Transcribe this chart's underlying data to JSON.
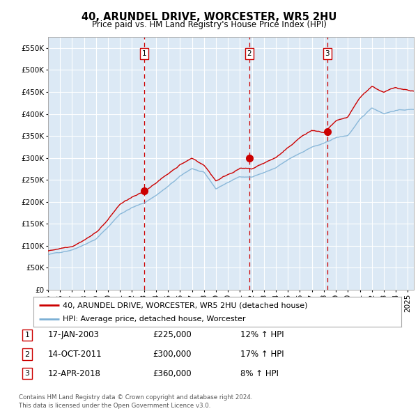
{
  "title": "40, ARUNDEL DRIVE, WORCESTER, WR5 2HU",
  "subtitle": "Price paid vs. HM Land Registry's House Price Index (HPI)",
  "plot_bg_color": "#dce9f5",
  "fig_bg_color": "#ffffff",
  "red_line_color": "#cc0000",
  "blue_line_color": "#7bafd4",
  "grid_color": "#ffffff",
  "dashed_line_color": "#cc0000",
  "ylim": [
    0,
    575000
  ],
  "yticks": [
    0,
    50000,
    100000,
    150000,
    200000,
    250000,
    300000,
    350000,
    400000,
    450000,
    500000,
    550000
  ],
  "sale_dates_num": [
    2003.04,
    2011.79,
    2018.28
  ],
  "sale_prices": [
    225000,
    300000,
    360000
  ],
  "sale_labels": [
    "1",
    "2",
    "3"
  ],
  "sale_info": [
    {
      "num": "1",
      "date": "17-JAN-2003",
      "price": "£225,000",
      "hpi": "12% ↑ HPI"
    },
    {
      "num": "2",
      "date": "14-OCT-2011",
      "price": "£300,000",
      "hpi": "17% ↑ HPI"
    },
    {
      "num": "3",
      "date": "12-APR-2018",
      "price": "£360,000",
      "hpi": "8% ↑ HPI"
    }
  ],
  "legend_label_red": "40, ARUNDEL DRIVE, WORCESTER, WR5 2HU (detached house)",
  "legend_label_blue": "HPI: Average price, detached house, Worcester",
  "footer": "Contains HM Land Registry data © Crown copyright and database right 2024.\nThis data is licensed under the Open Government Licence v3.0.",
  "xstart": 1995.0,
  "xend": 2025.5,
  "hpi_knots_x": [
    1995,
    1996,
    1997,
    1998,
    1999,
    2000,
    2001,
    2002,
    2003,
    2004,
    2005,
    2006,
    2007,
    2008,
    2009,
    2010,
    2011,
    2012,
    2013,
    2014,
    2015,
    2016,
    2017,
    2018,
    2019,
    2020,
    2021,
    2022,
    2023,
    2024,
    2025.5
  ],
  "hpi_knots_y": [
    80000,
    85000,
    92000,
    105000,
    118000,
    145000,
    175000,
    190000,
    200000,
    218000,
    238000,
    260000,
    278000,
    268000,
    230000,
    245000,
    258000,
    258000,
    268000,
    278000,
    295000,
    310000,
    325000,
    332000,
    345000,
    350000,
    385000,
    412000,
    400000,
    408000,
    410000
  ],
  "red_knots_x": [
    1995,
    1996,
    1997,
    1998,
    1999,
    2000,
    2001,
    2002,
    2003,
    2004,
    2005,
    2006,
    2007,
    2008,
    2009,
    2010,
    2011,
    2012,
    2013,
    2014,
    2015,
    2016,
    2017,
    2018,
    2019,
    2020,
    2021,
    2022,
    2023,
    2024,
    2025.5
  ],
  "red_knots_y": [
    88000,
    95000,
    102000,
    118000,
    135000,
    165000,
    200000,
    215000,
    225000,
    248000,
    268000,
    290000,
    305000,
    290000,
    255000,
    270000,
    285000,
    282000,
    295000,
    308000,
    328000,
    352000,
    368000,
    362000,
    385000,
    392000,
    435000,
    462000,
    448000,
    458000,
    452000
  ],
  "noise_seed": 42,
  "noise_scale_hpi": 2500,
  "noise_scale_red": 3500,
  "n_points": 500
}
